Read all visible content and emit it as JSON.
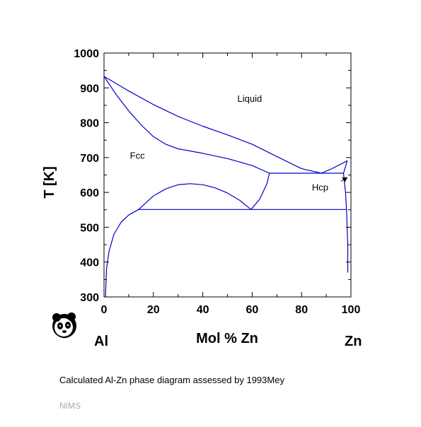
{
  "chart_data": {
    "type": "line",
    "title": "",
    "xlabel": "Mol % Zn",
    "ylabel": "T [K]",
    "xlim": [
      0,
      100
    ],
    "ylim": [
      300,
      1000
    ],
    "xticks": [
      0,
      20,
      40,
      60,
      80,
      100
    ],
    "yticks": [
      300,
      400,
      500,
      600,
      700,
      800,
      900,
      1000
    ],
    "grid": false,
    "element_left": "Al",
    "element_right": "Zn",
    "line_color": "#0000cc",
    "region_labels": [
      {
        "text": "Liquid",
        "x": 59,
        "y": 860
      },
      {
        "text": "Fcc",
        "x": 13.5,
        "y": 697
      },
      {
        "text": "Hcp",
        "x": 87.5,
        "y": 605
      }
    ],
    "series": [
      {
        "points": [
          [
            0,
            933
          ],
          [
            10,
            891
          ],
          [
            20,
            852
          ],
          [
            30,
            818
          ],
          [
            40,
            790
          ],
          [
            50,
            765
          ],
          [
            60,
            738
          ],
          [
            70,
            703
          ],
          [
            80,
            668
          ],
          [
            88,
            655
          ],
          [
            92,
            667
          ],
          [
            97,
            685
          ],
          [
            98.5,
            691
          ]
        ]
      },
      {
        "points": [
          [
            0,
            933
          ],
          [
            5,
            880
          ],
          [
            10,
            834
          ],
          [
            15,
            794
          ],
          [
            20,
            760
          ],
          [
            25,
            738
          ],
          [
            30,
            725
          ],
          [
            40,
            712
          ],
          [
            50,
            697
          ],
          [
            60,
            677
          ],
          [
            67,
            655
          ]
        ]
      },
      {
        "points": [
          [
            67,
            655
          ],
          [
            88,
            655
          ],
          [
            97,
            655
          ]
        ]
      },
      {
        "points": [
          [
            98.5,
            691
          ],
          [
            97,
            655
          ],
          [
            97.8,
            600
          ],
          [
            98.2,
            551
          ],
          [
            98.7,
            450
          ],
          [
            98.7,
            370
          ]
        ]
      },
      {
        "points": [
          [
            59.5,
            551
          ],
          [
            63,
            580
          ],
          [
            66,
            625
          ],
          [
            67,
            655
          ]
        ]
      },
      {
        "points": [
          [
            14,
            551
          ],
          [
            20,
            590
          ],
          [
            25,
            610
          ],
          [
            30,
            622
          ],
          [
            35,
            625
          ],
          [
            40,
            622
          ],
          [
            45,
            613
          ],
          [
            50,
            598
          ],
          [
            55,
            577
          ],
          [
            59.5,
            551
          ]
        ]
      },
      {
        "points": [
          [
            14,
            551
          ],
          [
            98.2,
            551
          ]
        ]
      },
      {
        "points": [
          [
            0.6,
            300
          ],
          [
            1,
            380
          ],
          [
            2,
            430
          ],
          [
            4,
            480
          ],
          [
            7,
            515
          ],
          [
            10,
            535
          ],
          [
            14,
            551
          ]
        ]
      }
    ],
    "arrow": {
      "from": [
        96,
        632
      ],
      "to": [
        98.4,
        642
      ]
    }
  },
  "caption": "Calculated Al-Zn phase diagram assessed by 1993Mey",
  "source": "NIMS",
  "logo": "panda-logo"
}
